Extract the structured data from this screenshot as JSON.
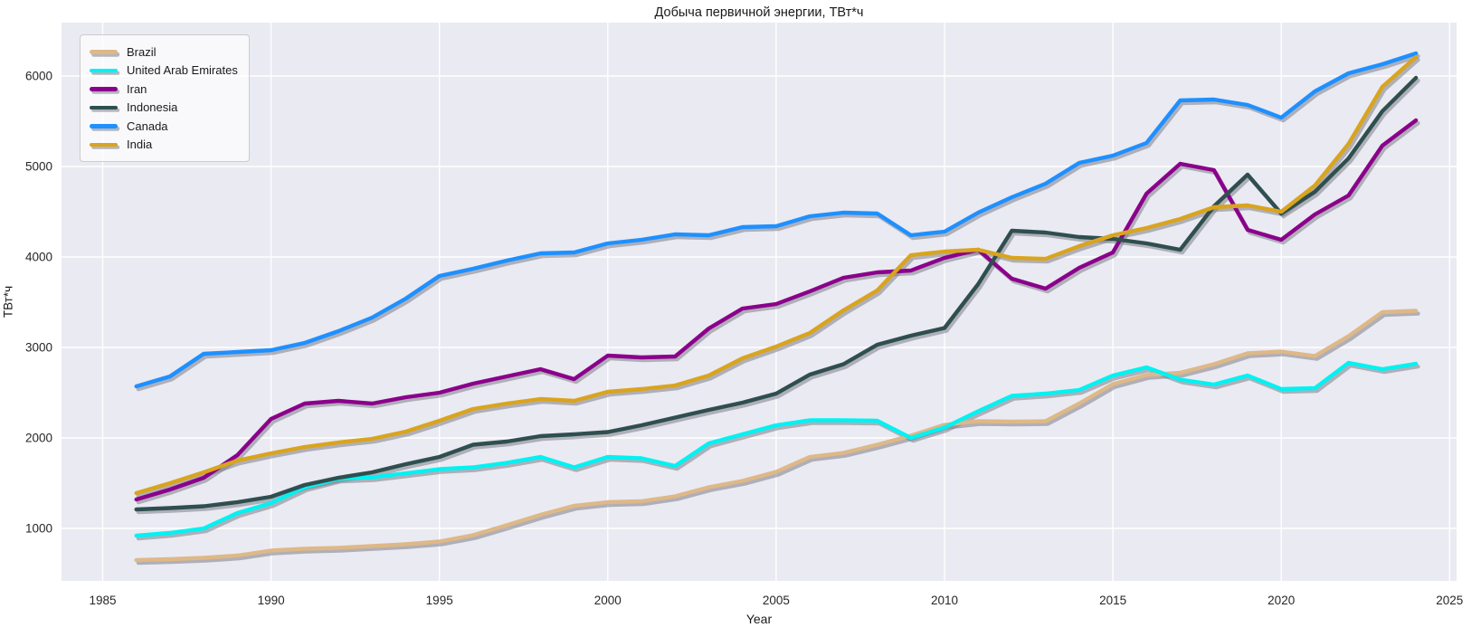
{
  "figure": {
    "title": "Добыча первичной энергии, ТВт*ч",
    "xlabel": "Year",
    "ylabel": "ТВт*ч"
  },
  "theme": {
    "plot_bg": "#EAEAF2",
    "grid_color": "#FFFFFF",
    "shadow_color": "rgba(125,125,138,0.55)",
    "tick_color": "#262626",
    "legend_bg": "rgba(255,255,255,0.72)",
    "legend_border": "#CCCCCC"
  },
  "chart_data": {
    "type": "line",
    "title": "Добыча первичной энергии, ТВт*ч",
    "xlabel": "Year",
    "ylabel": "ТВт*ч",
    "grid": true,
    "legend_position": "upper left",
    "xlim": [
      1983.7,
      2025.2
    ],
    "ylim": [
      420,
      6590
    ],
    "xticks": [
      1985,
      1990,
      1995,
      2000,
      2005,
      2010,
      2015,
      2020,
      2025
    ],
    "yticks": [
      1000,
      2000,
      3000,
      4000,
      5000,
      6000
    ],
    "x": [
      1986,
      1987,
      1988,
      1989,
      1990,
      1991,
      1992,
      1993,
      1994,
      1995,
      1996,
      1997,
      1998,
      1999,
      2000,
      2001,
      2002,
      2003,
      2004,
      2005,
      2006,
      2007,
      2008,
      2009,
      2010,
      2011,
      2012,
      2013,
      2014,
      2015,
      2016,
      2017,
      2018,
      2019,
      2020,
      2021,
      2022,
      2023,
      2024
    ],
    "series": [
      {
        "name": "Brazil",
        "color": "#DEB887",
        "values": [
          650,
          660,
          675,
          700,
          755,
          775,
          785,
          805,
          825,
          855,
          925,
          1035,
          1150,
          1250,
          1290,
          1300,
          1355,
          1455,
          1525,
          1625,
          1790,
          1835,
          1925,
          2025,
          2145,
          2185,
          2180,
          2185,
          2380,
          2595,
          2695,
          2720,
          2815,
          2935,
          2955,
          2905,
          3125,
          3390,
          3405
        ]
      },
      {
        "name": "United Arab Emirates",
        "color": "#00F2F2",
        "values": [
          920,
          950,
          1000,
          1170,
          1280,
          1455,
          1550,
          1565,
          1610,
          1655,
          1675,
          1725,
          1790,
          1675,
          1790,
          1775,
          1690,
          1940,
          2040,
          2140,
          2195,
          2195,
          2190,
          2000,
          2115,
          2295,
          2465,
          2490,
          2530,
          2690,
          2780,
          2645,
          2590,
          2690,
          2540,
          2550,
          2830,
          2760,
          2820
        ]
      },
      {
        "name": "Iran",
        "color": "#8B008B",
        "values": [
          1320,
          1430,
          1560,
          1810,
          2210,
          2380,
          2410,
          2380,
          2450,
          2500,
          2600,
          2680,
          2760,
          2650,
          2910,
          2890,
          2900,
          3210,
          3430,
          3480,
          3620,
          3770,
          3830,
          3850,
          3990,
          4080,
          3760,
          3650,
          3880,
          4050,
          4700,
          5030,
          4960,
          4300,
          4190,
          4470,
          4680,
          5230,
          5510
        ]
      },
      {
        "name": "Indonesia",
        "color": "#2F4F4F",
        "values": [
          1210,
          1225,
          1245,
          1290,
          1350,
          1480,
          1560,
          1620,
          1710,
          1790,
          1925,
          1960,
          2020,
          2040,
          2065,
          2140,
          2225,
          2310,
          2390,
          2490,
          2700,
          2815,
          3030,
          3130,
          3215,
          3700,
          4290,
          4270,
          4220,
          4200,
          4150,
          4080,
          4560,
          4910,
          4480,
          4720,
          5090,
          5610,
          5980
        ]
      },
      {
        "name": "Canada",
        "color": "#1E90FF",
        "values": [
          2570,
          2680,
          2930,
          2950,
          2970,
          3050,
          3180,
          3330,
          3540,
          3790,
          3870,
          3960,
          4040,
          4050,
          4150,
          4190,
          4250,
          4240,
          4330,
          4340,
          4450,
          4490,
          4480,
          4240,
          4280,
          4490,
          4660,
          4810,
          5040,
          5120,
          5260,
          5730,
          5740,
          5680,
          5540,
          5830,
          6030,
          6130,
          6250
        ]
      },
      {
        "name": "India",
        "color": "#D9A41E",
        "values": [
          1390,
          1500,
          1620,
          1750,
          1830,
          1900,
          1950,
          1990,
          2070,
          2190,
          2320,
          2380,
          2430,
          2410,
          2510,
          2540,
          2580,
          2690,
          2880,
          3010,
          3160,
          3410,
          3630,
          4020,
          4060,
          4080,
          3990,
          3980,
          4120,
          4240,
          4320,
          4420,
          4550,
          4570,
          4500,
          4790,
          5250,
          5880,
          6210
        ]
      }
    ]
  }
}
